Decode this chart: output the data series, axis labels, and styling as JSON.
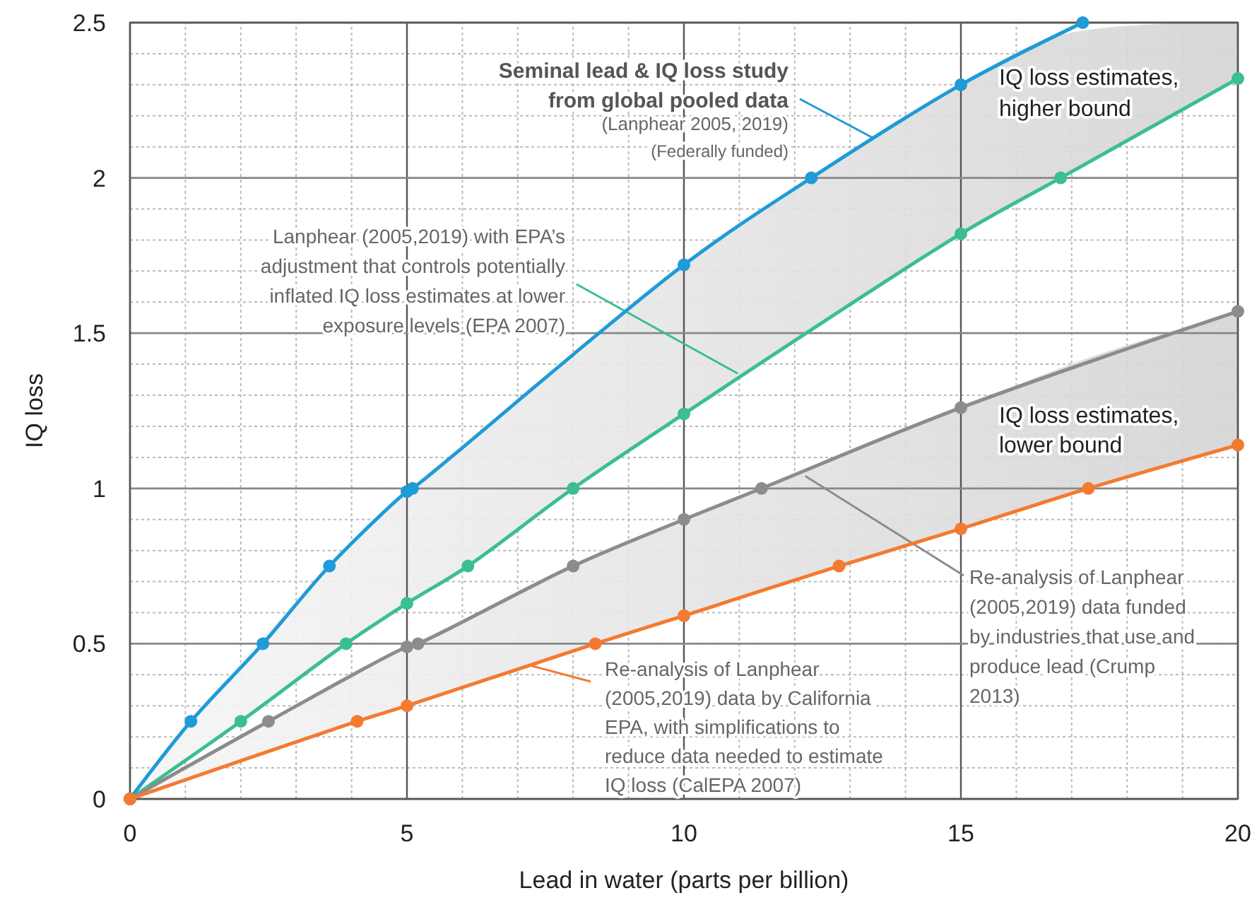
{
  "chart_data": {
    "type": "line",
    "xlabel": "Lead in water (parts per billion)",
    "ylabel": "IQ loss",
    "xlim": [
      0,
      20
    ],
    "xticks": [
      0,
      5,
      10,
      15,
      20
    ],
    "ylim": [
      0,
      2.5
    ],
    "yticks": [
      0,
      0.5,
      1,
      1.5,
      2,
      2.5
    ],
    "grid": true,
    "marker": "circle",
    "line_style": "solid",
    "series": [
      {
        "color": "#1f9bd7",
        "x": [
          0,
          1.1,
          2.4,
          3.6,
          5,
          5.1,
          10,
          12.3,
          15,
          17.2
        ],
        "values": [
          0,
          0.25,
          0.5,
          0.75,
          0.99,
          1.0,
          1.72,
          2.0,
          2.3,
          2.5
        ]
      },
      {
        "color": "#3bbf8f",
        "x": [
          0,
          2,
          3.9,
          5,
          6.1,
          8,
          10,
          15,
          16.8,
          20
        ],
        "values": [
          0,
          0.25,
          0.5,
          0.63,
          0.75,
          1.0,
          1.24,
          1.82,
          2.0,
          2.32
        ],
        "lower": [
          0,
          0.25,
          0.5,
          0.63,
          0.75,
          1.0,
          1.24,
          1.82,
          2.0,
          2.32
        ],
        "upper": [
          0,
          0.44,
          0.8,
          0.99,
          1.15,
          1.42,
          1.72,
          2.3,
          2.46,
          2.5
        ]
      },
      {
        "color": "#8c8c8c",
        "x": [
          0,
          2.5,
          5,
          5.2,
          8,
          10,
          11.4,
          15,
          20
        ],
        "values": [
          0,
          0.25,
          0.49,
          0.5,
          0.75,
          0.9,
          1.0,
          1.26,
          1.57
        ]
      },
      {
        "color": "#f47a30",
        "x": [
          0,
          4.1,
          5,
          8.4,
          10,
          12.8,
          15,
          17.3,
          20
        ],
        "values": [
          0,
          0.25,
          0.3,
          0.5,
          0.59,
          0.75,
          0.87,
          1.0,
          1.14
        ],
        "lower": [
          0,
          0.25,
          0.3,
          0.5,
          0.59,
          0.75,
          0.87,
          1.0,
          1.14
        ],
        "upper": [
          0,
          0.41,
          0.49,
          0.78,
          0.9,
          1.1,
          1.26,
          1.42,
          1.57
        ]
      }
    ],
    "annotations": [
      {
        "text": "Seminal lead & IQ loss study\nfrom global pooled data",
        "x": 13.4,
        "y": 2.13
      },
      "(Lanphear 2005, 2019)",
      "(Federally funded)",
      "IQ loss estimates,\nhigher bound",
      {
        "text": "Lanphear (2005,2019) with EPA’s\nadjustment that controls potentially\ninflated IQ loss estimates at lower\nexposure levels (EPA 2007)",
        "x": 10.97,
        "y": 1.37
      },
      "IQ loss estimates,\nlower bound",
      {
        "text": "Re-analysis of Lanphear\n(2005,2019) data funded\nby industries that use and\nproduce lead (Crump\n2013)",
        "x": 12.19,
        "y": 1.04
      },
      {
        "text": "Re-analysis of Lanphear\n(2005,2019) data by California\nEPA, with simplifications to\nreduce data needed to estimate\nIQ loss (CalEPA 2007)",
        "x": 7.22,
        "y": 0.43
      }
    ]
  }
}
